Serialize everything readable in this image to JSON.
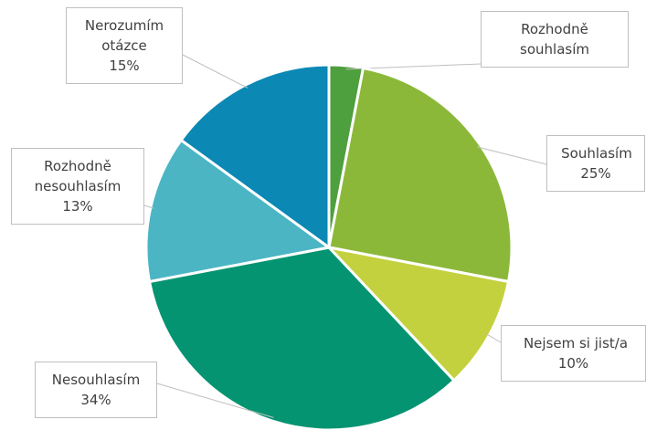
{
  "chart_data": {
    "type": "pie",
    "categories": [
      "Rozhodně souhlasím",
      "Souhlasím",
      "Nejsem si jist/a",
      "Nesouhlasím",
      "Rozhodně nesouhlasím",
      "Nerozumím otázce"
    ],
    "values": [
      3,
      25,
      10,
      34,
      13,
      15
    ],
    "value_labels": [
      null,
      "25%",
      "10%",
      "34%",
      "13%",
      "15%"
    ],
    "colors": [
      "#4e9f3d",
      "#8cb83a",
      "#c4d13f",
      "#059471",
      "#4bb5c4",
      "#0b88b4"
    ]
  }
}
